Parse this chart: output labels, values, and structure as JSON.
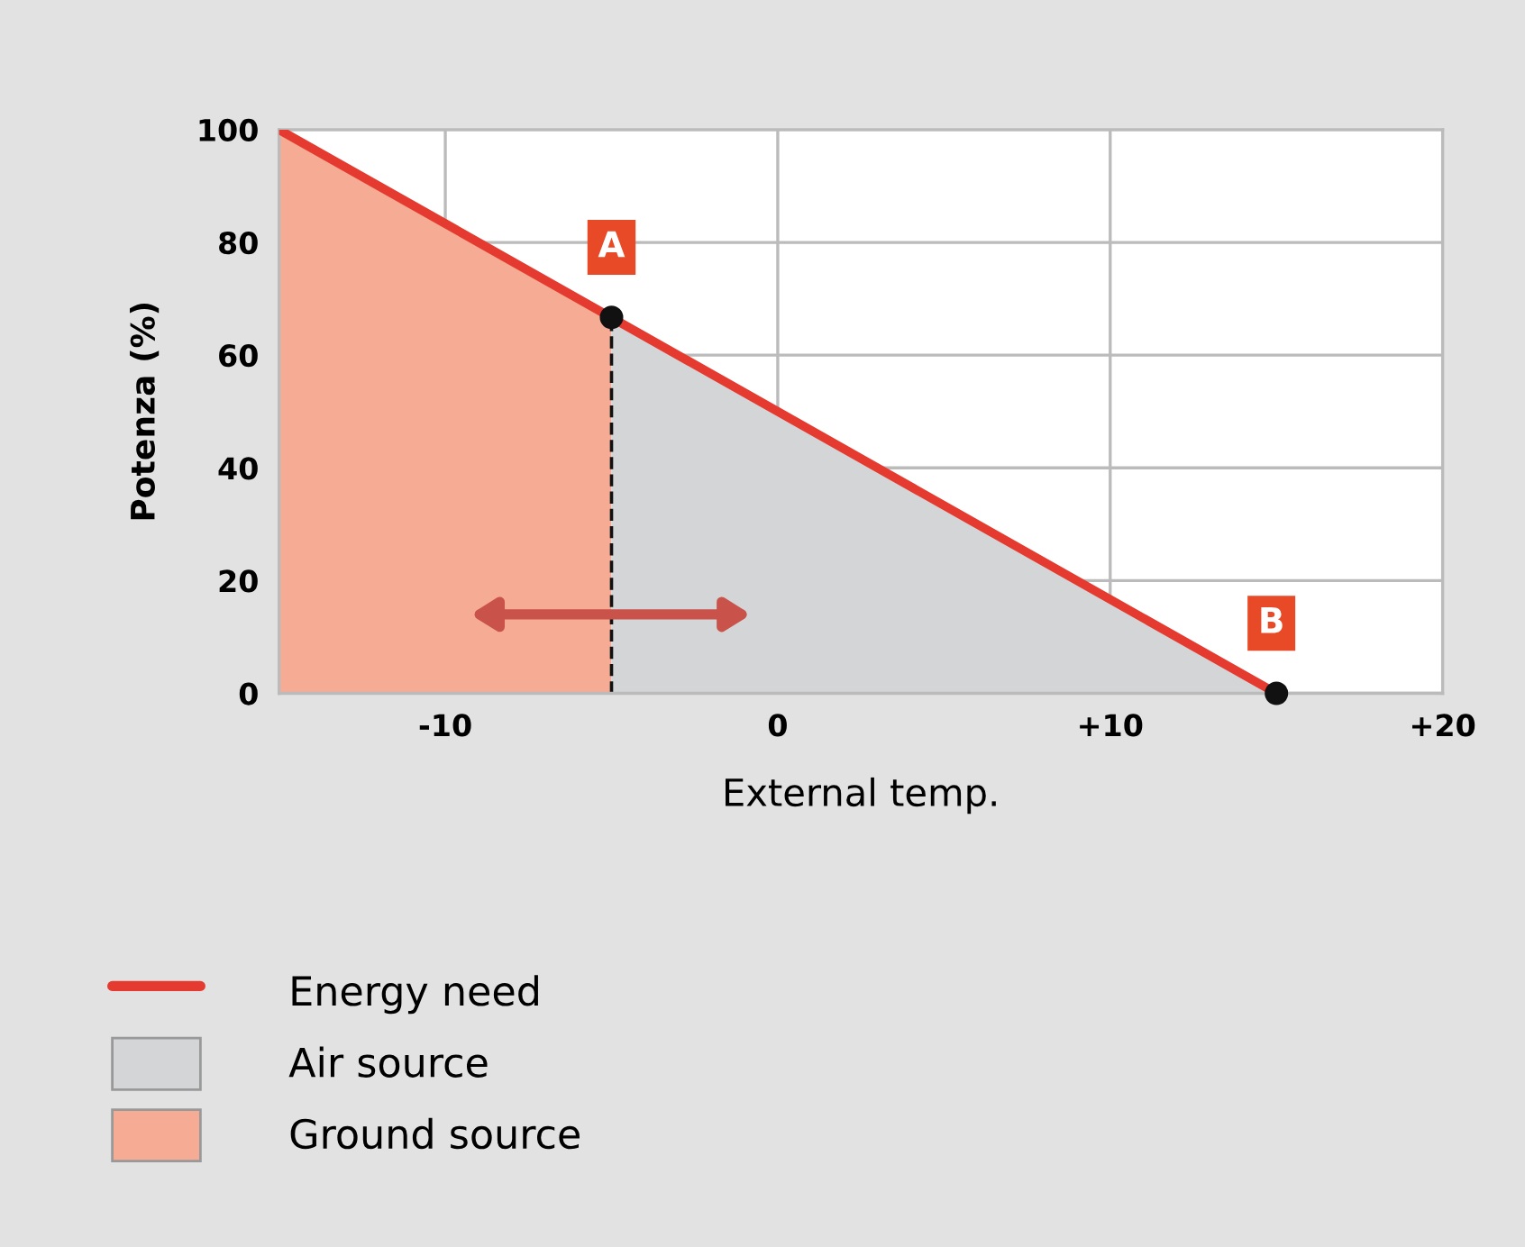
{
  "chart_data": {
    "type": "line",
    "xlabel": "External temp.",
    "ylabel": "Potenza (%)",
    "xlim": [
      -15,
      20
    ],
    "ylim": [
      0,
      100
    ],
    "xticks": [
      -10,
      0,
      {
        "value": 10,
        "label": "+10"
      },
      {
        "value": 20,
        "label": "+20"
      }
    ],
    "yticks": [
      0,
      20,
      40,
      60,
      80,
      100
    ],
    "grid": true,
    "legend": "bottom left",
    "series": [
      {
        "name": "Ground source",
        "type": "area",
        "color": "#f5ab94",
        "x": [
          -15,
          -5
        ],
        "values": [
          100,
          66.7
        ]
      },
      {
        "name": "Air source",
        "type": "area",
        "color": "#d3d5d7",
        "x": [
          -5,
          15
        ],
        "values": [
          66.7,
          0
        ]
      },
      {
        "name": "Energy need",
        "color": "#e53a2f",
        "x": [
          -15,
          15
        ],
        "values": [
          100,
          0
        ]
      },
      {
        "type": "scatter",
        "color": "#111111",
        "x": [
          -5,
          15
        ],
        "values": [
          66.7,
          0
        ],
        "marker": "circle"
      }
    ],
    "ref_lines": [
      {
        "axis": "x",
        "value": -5,
        "color": "#111111",
        "line_style": "dashed"
      }
    ],
    "annotations": [
      {
        "text": "A",
        "x": -5,
        "y": 66.7
      },
      {
        "text": "B",
        "x": 15,
        "y": 0
      }
    ]
  }
}
